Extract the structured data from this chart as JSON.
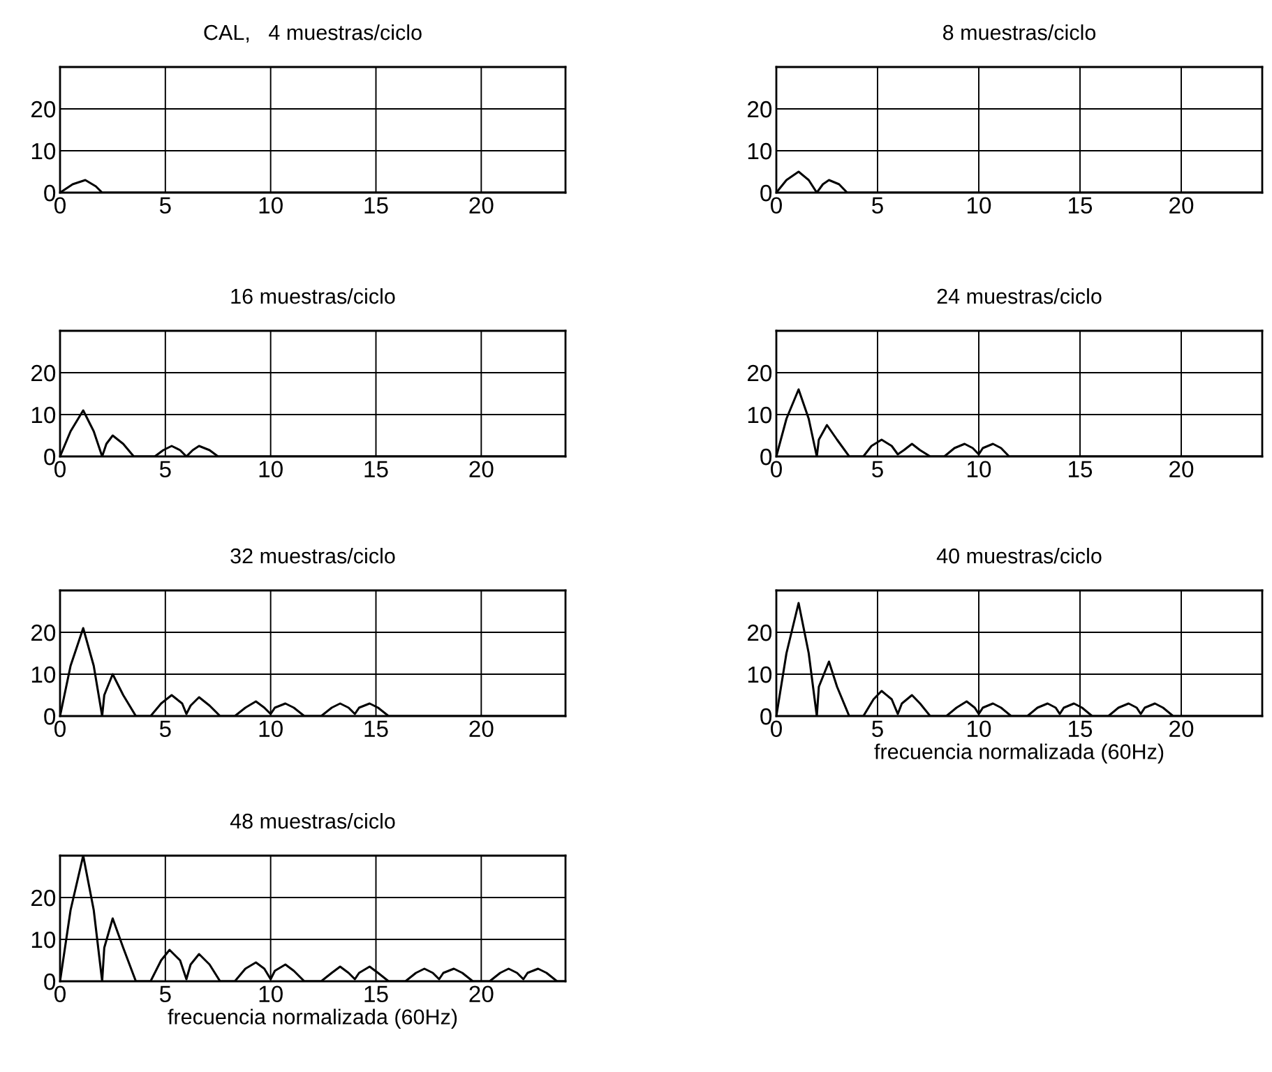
{
  "chart_data": [
    {
      "type": "line",
      "title": "CAL,   4 muestras/ciclo",
      "color": "#000000",
      "grid": true,
      "xlim": [
        0,
        24
      ],
      "ylim": [
        0,
        30
      ],
      "xticks": [
        0,
        5,
        10,
        15,
        20
      ],
      "yticks": [
        0,
        10,
        20
      ],
      "x": [
        0,
        0.6,
        1.2,
        1.7,
        2,
        24
      ],
      "values": [
        0,
        2,
        3,
        1.5,
        0,
        0
      ]
    },
    {
      "type": "line",
      "title": "8 muestras/ciclo",
      "color": "#000000",
      "grid": true,
      "xlim": [
        0,
        24
      ],
      "ylim": [
        0,
        30
      ],
      "xticks": [
        0,
        5,
        10,
        15,
        20
      ],
      "yticks": [
        0,
        10,
        20
      ],
      "x": [
        0,
        0.5,
        1.1,
        1.6,
        2,
        2.3,
        2.6,
        3.1,
        3.5,
        24
      ],
      "values": [
        0,
        3,
        5,
        3,
        0,
        2,
        3,
        2,
        0,
        0
      ]
    },
    {
      "type": "line",
      "title": "16 muestras/ciclo",
      "color": "#000000",
      "grid": true,
      "xlim": [
        0,
        24
      ],
      "ylim": [
        0,
        30
      ],
      "xticks": [
        0,
        5,
        10,
        15,
        20
      ],
      "yticks": [
        0,
        10,
        20
      ],
      "x": [
        0,
        0.5,
        1.1,
        1.6,
        2,
        2.2,
        2.5,
        3,
        3.5,
        4.5,
        4.9,
        5.3,
        5.7,
        6,
        6.3,
        6.6,
        7.1,
        7.5,
        24
      ],
      "values": [
        0,
        6,
        11,
        6,
        0,
        3,
        5,
        3,
        0,
        0,
        1.5,
        2.5,
        1.5,
        0,
        1.5,
        2.5,
        1.5,
        0,
        0
      ]
    },
    {
      "type": "line",
      "title": "24 muestras/ciclo",
      "color": "#000000",
      "grid": true,
      "xlim": [
        0,
        24
      ],
      "ylim": [
        0,
        30
      ],
      "xticks": [
        0,
        5,
        10,
        15,
        20
      ],
      "yticks": [
        0,
        10,
        20
      ],
      "x": [
        0,
        0.5,
        1.1,
        1.6,
        2,
        2.1,
        2.5,
        3,
        3.6,
        4.3,
        4.7,
        5.2,
        5.7,
        6,
        6.3,
        6.7,
        7.1,
        7.6,
        8.3,
        8.8,
        9.3,
        9.7,
        10,
        10.2,
        10.7,
        11.1,
        11.5,
        24
      ],
      "values": [
        0,
        9,
        16,
        9,
        0,
        4,
        7.5,
        4,
        0,
        0,
        2.5,
        4,
        2.5,
        0.5,
        1.5,
        3,
        1.5,
        0,
        0,
        2,
        3,
        2,
        0.5,
        2,
        3,
        2,
        0,
        0
      ]
    },
    {
      "type": "line",
      "title": "32 muestras/ciclo",
      "color": "#000000",
      "grid": true,
      "xlim": [
        0,
        24
      ],
      "ylim": [
        0,
        30
      ],
      "xticks": [
        0,
        5,
        10,
        15,
        20
      ],
      "yticks": [
        0,
        10,
        20
      ],
      "x": [
        0,
        0.5,
        1.1,
        1.6,
        2,
        2.1,
        2.5,
        3,
        3.6,
        4.3,
        4.8,
        5.3,
        5.8,
        6,
        6.2,
        6.6,
        7.1,
        7.6,
        8.3,
        8.8,
        9.3,
        9.7,
        10,
        10.2,
        10.7,
        11.1,
        11.6,
        12.4,
        12.9,
        13.3,
        13.7,
        14,
        14.2,
        14.7,
        15.1,
        15.6,
        24
      ],
      "values": [
        0,
        12,
        21,
        12,
        0,
        5,
        10,
        5,
        0,
        0,
        3,
        5,
        3,
        0.5,
        2.5,
        4.5,
        2.5,
        0,
        0,
        2,
        3.5,
        2,
        0.5,
        2,
        3,
        2,
        0,
        0,
        2,
        3,
        2,
        0.5,
        2,
        3,
        2,
        0,
        0
      ]
    },
    {
      "type": "line",
      "title": "40 muestras/ciclo",
      "xlabel": "frecuencia normalizada (60Hz)",
      "color": "#000000",
      "grid": true,
      "xlim": [
        0,
        24
      ],
      "ylim": [
        0,
        30
      ],
      "xticks": [
        0,
        5,
        10,
        15,
        20
      ],
      "yticks": [
        0,
        10,
        20
      ],
      "x": [
        0,
        0.5,
        1.1,
        1.6,
        2,
        2.1,
        2.6,
        3,
        3.6,
        4.3,
        4.8,
        5.2,
        5.7,
        6,
        6.2,
        6.7,
        7.1,
        7.6,
        8.4,
        8.9,
        9.4,
        9.8,
        10,
        10.2,
        10.7,
        11.1,
        11.6,
        12.4,
        12.9,
        13.4,
        13.8,
        14,
        14.2,
        14.7,
        15.1,
        15.6,
        16.4,
        16.9,
        17.4,
        17.8,
        18,
        18.2,
        18.7,
        19.1,
        19.6,
        24
      ],
      "values": [
        0,
        15,
        27,
        15,
        0,
        7,
        13,
        7,
        0,
        0,
        4,
        6,
        4,
        0.5,
        3,
        5,
        3,
        0,
        0,
        2,
        3.5,
        2,
        0.5,
        2,
        3,
        2,
        0,
        0,
        2,
        3,
        2,
        0.5,
        2,
        3,
        2,
        0,
        0,
        2,
        3,
        2,
        0.5,
        2,
        3,
        2,
        0,
        0
      ]
    },
    {
      "type": "line",
      "title": "48 muestras/ciclo",
      "xlabel": "frecuencia normalizada (60Hz)",
      "color": "#000000",
      "grid": true,
      "xlim": [
        0,
        24
      ],
      "ylim": [
        0,
        30
      ],
      "xticks": [
        0,
        5,
        10,
        15,
        20
      ],
      "yticks": [
        0,
        10,
        20
      ],
      "x": [
        0,
        0.5,
        1.1,
        1.6,
        2,
        2.1,
        2.5,
        3,
        3.6,
        4.3,
        4.8,
        5.2,
        5.7,
        6,
        6.2,
        6.6,
        7.1,
        7.6,
        8.3,
        8.8,
        9.3,
        9.7,
        10,
        10.2,
        10.7,
        11.1,
        11.6,
        12.4,
        12.9,
        13.3,
        13.7,
        14,
        14.2,
        14.7,
        15.1,
        15.6,
        16.4,
        16.9,
        17.3,
        17.7,
        18,
        18.2,
        18.7,
        19.1,
        19.6,
        20.4,
        20.9,
        21.3,
        21.7,
        22,
        22.2,
        22.7,
        23.1,
        23.6,
        24
      ],
      "values": [
        0,
        17,
        30,
        17,
        0,
        8,
        15,
        8,
        0,
        0,
        5,
        7.5,
        5,
        0.5,
        4,
        6.5,
        4,
        0,
        0,
        3,
        4.5,
        3,
        0.5,
        2.5,
        4,
        2.5,
        0,
        0,
        2,
        3.5,
        2,
        0.5,
        2,
        3.5,
        2,
        0,
        0,
        2,
        3,
        2,
        0.5,
        2,
        3,
        2,
        0,
        0,
        2,
        3,
        2,
        0.5,
        2,
        3,
        2,
        0,
        0
      ]
    }
  ]
}
